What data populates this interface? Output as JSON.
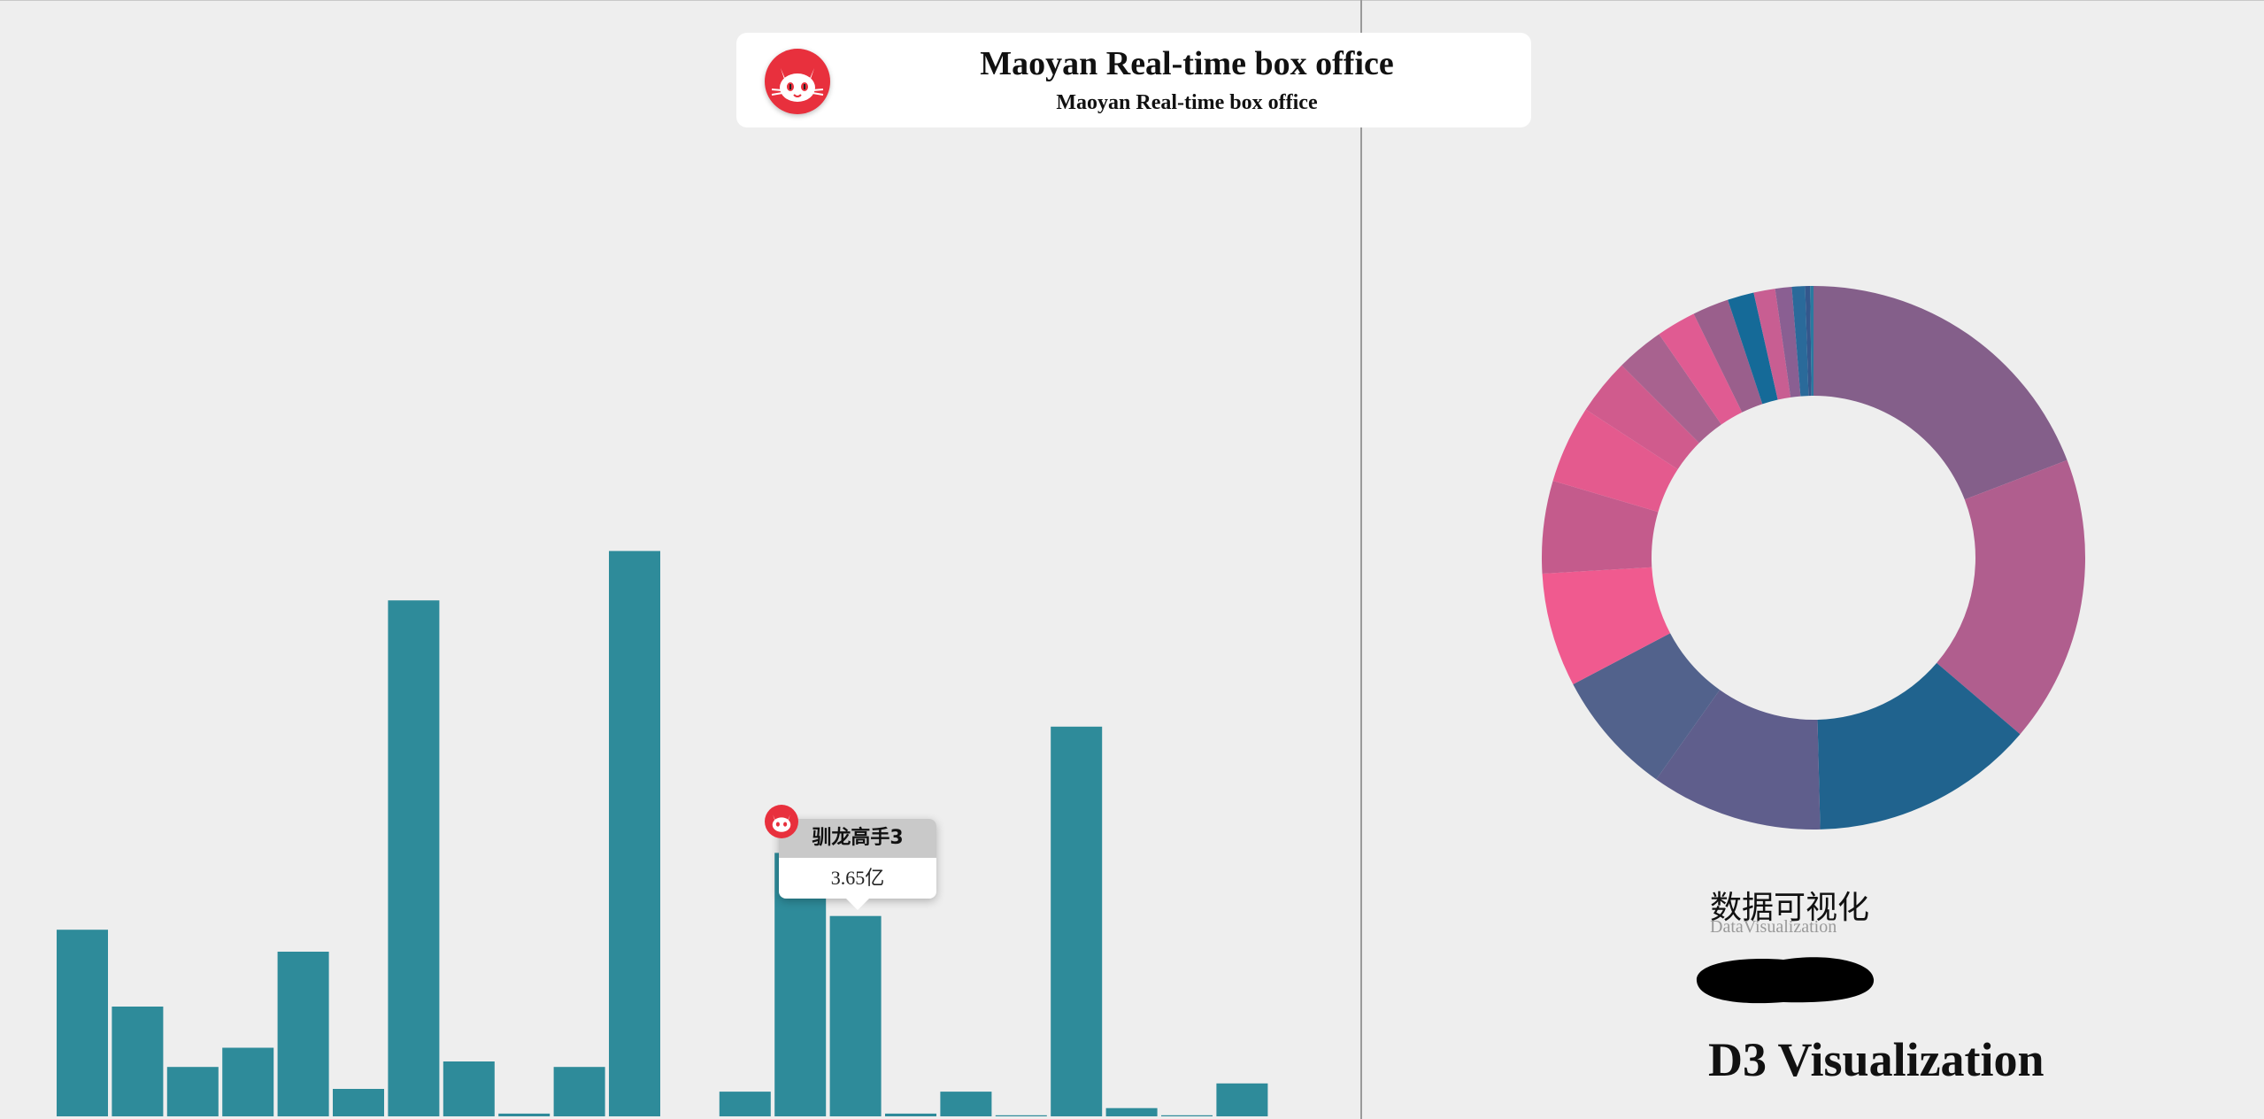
{
  "header": {
    "title": "Maoyan Real-time box office",
    "subtitle": "Maoyan Real-time box office",
    "logo_icon": "maoyan-cat-logo-icon"
  },
  "tooltip": {
    "movie": "驯龙高手3",
    "value": "3.65亿"
  },
  "footer": {
    "dv_title": "数据可视化",
    "dv_subtitle": "DataVisualization",
    "d3_title": "D3 Visualization"
  },
  "colors": {
    "background": "#eeeeee",
    "bar": "#2e8b9a",
    "brand_red": "#e8303d"
  },
  "chart_data": [
    {
      "type": "bar",
      "title": "",
      "xlabel": "",
      "ylabel": "",
      "ylim": [
        0,
        10
      ],
      "categories": [
        "",
        "",
        "",
        "",
        "",
        "",
        "",
        "",
        "",
        "",
        "",
        "",
        "",
        "",
        "",
        "",
        "",
        "",
        "",
        "",
        "",
        "",
        ""
      ],
      "values": [
        3.4,
        2.0,
        0.9,
        1.25,
        3.0,
        0.5,
        9.4,
        1.0,
        0.05,
        0.9,
        10.3,
        0.0,
        0.45,
        4.8,
        3.65,
        0.05,
        0.45,
        0.02,
        7.1,
        0.15,
        0.02,
        0.6,
        0.0
      ],
      "highlight": {
        "index": 14,
        "label": "驯龙高手3",
        "value": "3.65亿"
      },
      "grid": false,
      "legend": "none"
    },
    {
      "type": "pie",
      "donut": true,
      "title": "",
      "legend": "none",
      "values": [
        19.5,
        17.4,
        13.6,
        10.4,
        7.6,
        6.9,
        5.6,
        4.7,
        3.4,
        2.9,
        2.4,
        2.2,
        1.6,
        1.3,
        1.0,
        0.8,
        0.3,
        0.2
      ],
      "colors": [
        "#845f8a",
        "#b05e8e",
        "#20638e",
        "#5f5e8c",
        "#52628c",
        "#f05a8f",
        "#c45b8c",
        "#e45a8e",
        "#d05b8d",
        "#a8628f",
        "#e05b92",
        "#9a5f8c",
        "#156a98",
        "#c85e92",
        "#8a5f92",
        "#2a6a9a",
        "#34578c",
        "#2a7aa0"
      ]
    }
  ]
}
